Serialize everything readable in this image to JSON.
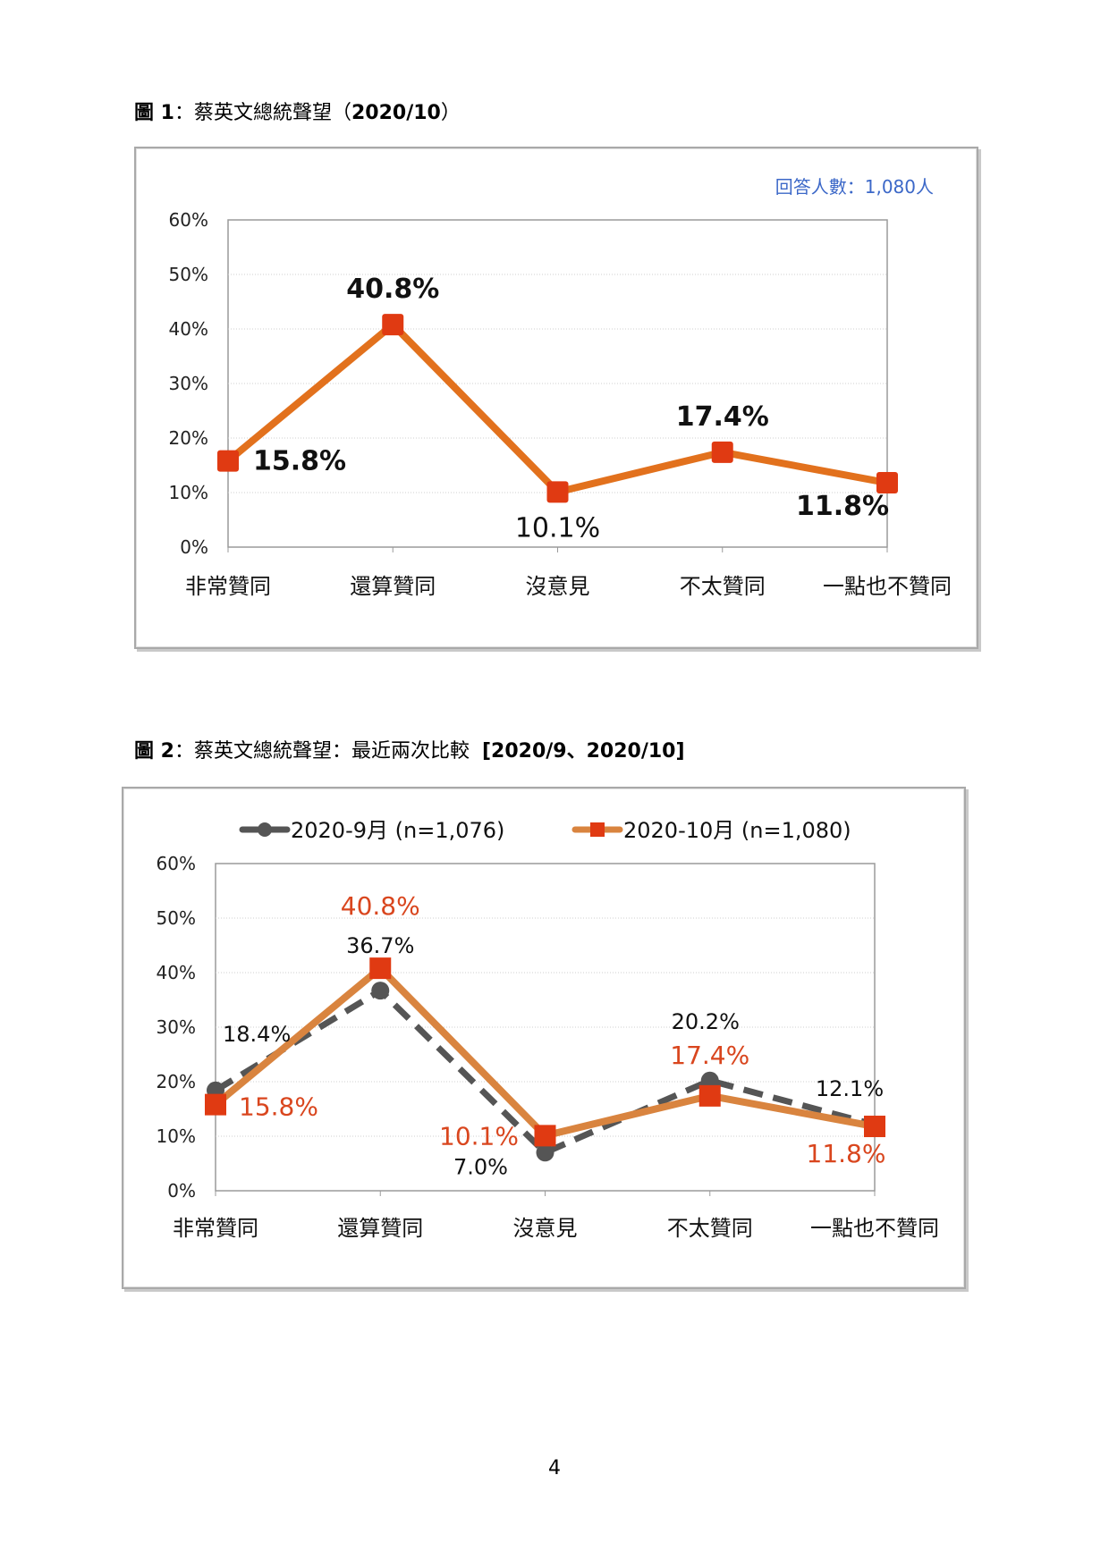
{
  "figure1": {
    "caption_prefix": "圖 1",
    "caption_text": "：蔡英文總統聲望（",
    "caption_period": "2020/10",
    "caption_suffix": "）"
  },
  "figure2": {
    "caption_prefix": "圖 2",
    "caption_text": "：蔡英文總統聲望：最近兩次比較",
    "caption_period": "[2020/9、2020/10]"
  },
  "page_number": "4",
  "colors": {
    "orange": "#e2711d",
    "orange2": "#d9843f",
    "red_label": "#d9461e",
    "gray": "#555555",
    "marker_red": "#e03a12",
    "note_blue": "#3c68c8"
  },
  "chart_data": [
    {
      "type": "line",
      "note": "回答人數：1,080人",
      "categories": [
        "非常贊同",
        "還算贊同",
        "沒意見",
        "不太贊同",
        "一點也不贊同"
      ],
      "values": [
        15.8,
        40.8,
        10.1,
        17.4,
        11.8
      ],
      "labels": [
        "15.8%",
        "40.8%",
        "10.1%",
        "17.4%",
        "11.8%"
      ],
      "yticks": [
        "0%",
        "10%",
        "20%",
        "30%",
        "40%",
        "50%",
        "60%"
      ],
      "ylim": [
        0,
        60
      ],
      "grid": true
    },
    {
      "type": "line",
      "categories": [
        "非常贊同",
        "還算贊同",
        "沒意見",
        "不太贊同",
        "一點也不贊同"
      ],
      "yticks": [
        "0%",
        "10%",
        "20%",
        "30%",
        "40%",
        "50%",
        "60%"
      ],
      "ylim": [
        0,
        60
      ],
      "grid": true,
      "legend": "top",
      "series": [
        {
          "name": "2020-9月 (n=1,076)",
          "values": [
            18.4,
            36.7,
            7.0,
            20.2,
            12.1
          ],
          "labels": [
            "18.4%",
            "36.7%",
            "7.0%",
            "20.2%",
            "12.1%"
          ]
        },
        {
          "name": "2020-10月 (n=1,080)",
          "values": [
            15.8,
            40.8,
            10.1,
            17.4,
            11.8
          ],
          "labels": [
            "15.8%",
            "40.8%",
            "10.1%",
            "17.4%",
            "11.8%"
          ]
        }
      ]
    }
  ]
}
